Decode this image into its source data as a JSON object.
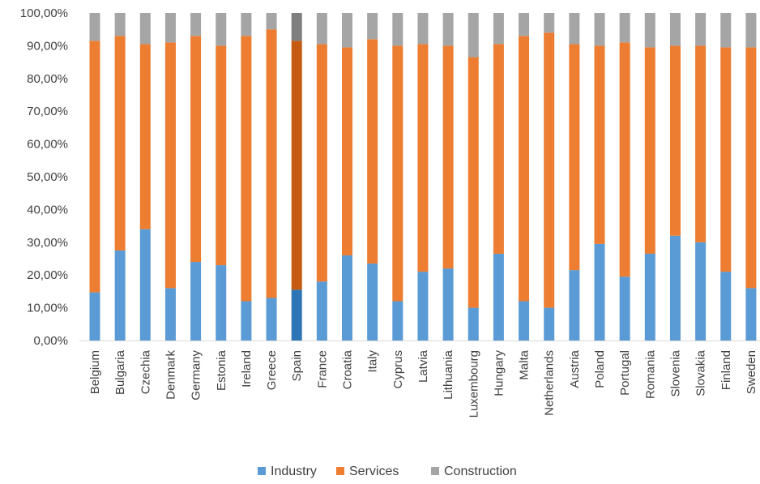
{
  "chart_data": {
    "type": "bar",
    "stacked": true,
    "ylim": [
      0,
      100
    ],
    "yticks": [
      "0,00%",
      "10,00%",
      "20,00%",
      "30,00%",
      "40,00%",
      "50,00%",
      "60,00%",
      "70,00%",
      "80,00%",
      "90,00%",
      "100,00%"
    ],
    "categories": [
      "Belgium",
      "Bulgaria",
      "Czechia",
      "Denmark",
      "Germany",
      "Estonia",
      "Ireland",
      "Greece",
      "Spain",
      "France",
      "Croatia",
      "Italy",
      "Cyprus",
      "Latvia",
      "Lithuania",
      "Luxembourg",
      "Hungary",
      "Malta",
      "Netherlands",
      "Austria",
      "Poland",
      "Portugal",
      "Romania",
      "Slovenia",
      "Slovakia",
      "Finland",
      "Sweden"
    ],
    "highlight_category": "Spain",
    "legend": {
      "position": "bottom"
    },
    "grid": false,
    "series": [
      {
        "name": "Industry",
        "color": "#5B9BD5",
        "highlight_color": "#2E75B6",
        "values": [
          14.7,
          27.5,
          34.0,
          16.0,
          24.0,
          23.0,
          12.0,
          13.0,
          15.5,
          18.0,
          26.0,
          23.5,
          12.0,
          21.0,
          22.0,
          10.0,
          26.5,
          12.0,
          10.0,
          21.5,
          29.5,
          19.5,
          26.5,
          32.0,
          30.0,
          21.0,
          16.0
        ]
      },
      {
        "name": "Services",
        "color": "#ED7D31",
        "highlight_color": "#C55A11",
        "values": [
          76.8,
          65.5,
          56.5,
          75.0,
          69.0,
          67.0,
          81.0,
          82.0,
          76.0,
          72.5,
          63.5,
          68.5,
          78.0,
          69.5,
          68.0,
          76.5,
          64.0,
          81.0,
          84.0,
          69.0,
          60.5,
          71.5,
          63.0,
          58.0,
          60.0,
          68.5,
          73.5
        ]
      },
      {
        "name": "Construction",
        "color": "#A5A5A5",
        "highlight_color": "#7F7F7F",
        "values": [
          8.5,
          7.0,
          9.5,
          9.0,
          7.0,
          10.0,
          7.0,
          5.0,
          8.5,
          9.5,
          10.5,
          8.0,
          10.0,
          9.5,
          10.0,
          13.5,
          9.5,
          7.0,
          6.0,
          9.5,
          10.0,
          9.0,
          10.5,
          10.0,
          10.0,
          10.5,
          10.5
        ]
      }
    ]
  }
}
